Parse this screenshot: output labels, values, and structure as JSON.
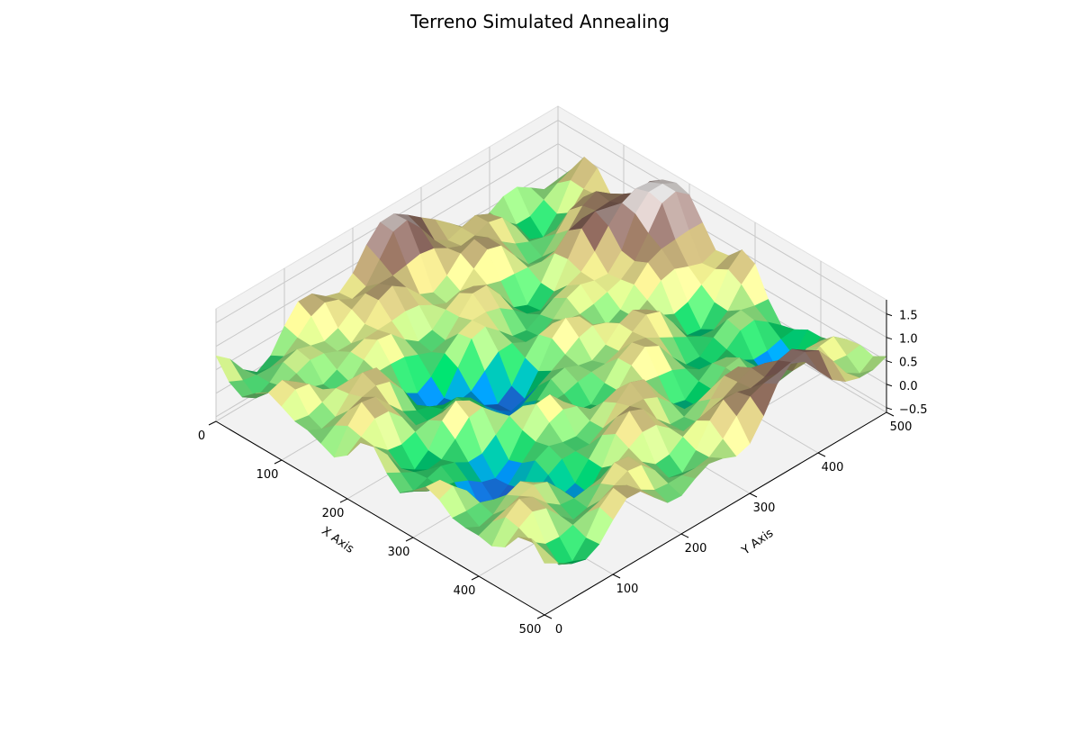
{
  "chart_data": {
    "type": "surface3d",
    "title": "Terreno Simulated Annealing",
    "xlabel": "X Axis",
    "ylabel": "Y Axis",
    "zlabel": "",
    "x_ticks": [
      0,
      100,
      200,
      300,
      400,
      500
    ],
    "y_ticks": [
      0,
      100,
      200,
      300,
      400,
      500
    ],
    "z_ticks": [
      -0.5,
      0.0,
      0.5,
      1.0,
      1.5
    ],
    "z_tick_labels": [
      "−0.5",
      "0.0",
      "0.5",
      "1.0",
      "1.5"
    ],
    "xlim": [
      0,
      500
    ],
    "ylim": [
      0,
      500
    ],
    "zlim": [
      -0.6,
      1.8
    ],
    "grid": true,
    "colormap": "terrain",
    "grid_resolution": 25,
    "peaks": [
      {
        "x": 0,
        "y": 250,
        "z": 1.6
      },
      {
        "x": 170,
        "y": 480,
        "z": 1.9
      },
      {
        "x": 480,
        "y": 380,
        "z": 1.5
      }
    ],
    "valleys": [
      {
        "x": 330,
        "y": 100,
        "z": -0.5
      },
      {
        "x": 200,
        "y": 200,
        "z": -0.4
      },
      {
        "x": 380,
        "y": 430,
        "z": -0.4
      }
    ]
  }
}
